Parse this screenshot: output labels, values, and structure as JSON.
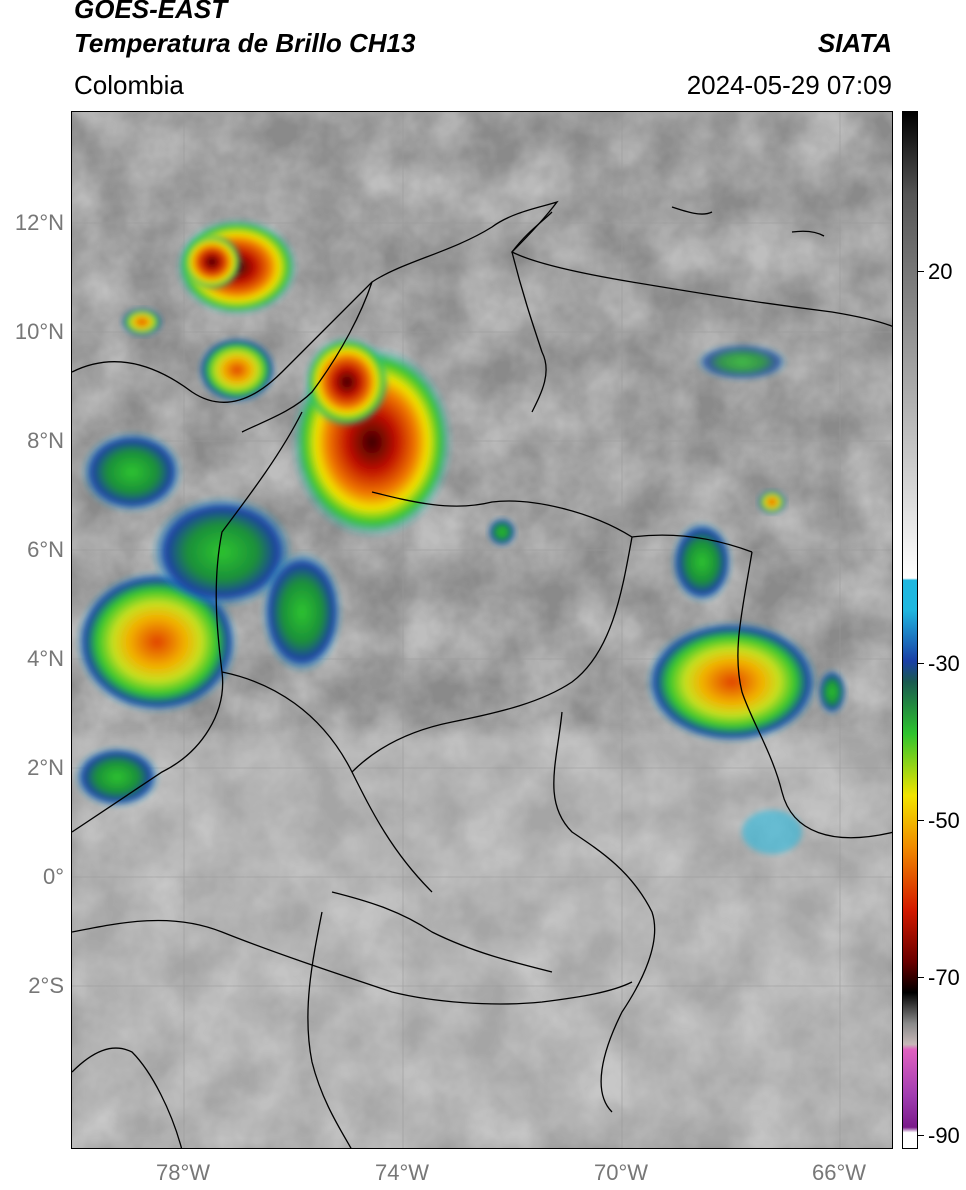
{
  "header": {
    "title_line1": "GOES-EAST",
    "title_line2": "Temperatura de Brillo CH13",
    "agency": "SIATA",
    "region": "Colombia",
    "timestamp": "2024-05-29 07:09"
  },
  "axes": {
    "lat_labels": [
      "12°N",
      "10°N",
      "8°N",
      "6°N",
      "4°N",
      "2°N",
      "0°",
      "2°S"
    ],
    "lon_labels": [
      "78°W",
      "74°W",
      "70°W",
      "66°W"
    ]
  },
  "colorbar": {
    "labels": [
      "20",
      "-30",
      "-50",
      "-70",
      "-90"
    ],
    "colors": {
      "warm": "#8c8c8c",
      "cyan": "#1fb8e0",
      "blue": "#1a3fa6",
      "green": "#2ec42e",
      "yellow": "#f2e400",
      "orange": "#f08a00",
      "red": "#d41a00",
      "darkred": "#6a0000",
      "black": "#000000",
      "magenta": "#a03cb0"
    }
  }
}
